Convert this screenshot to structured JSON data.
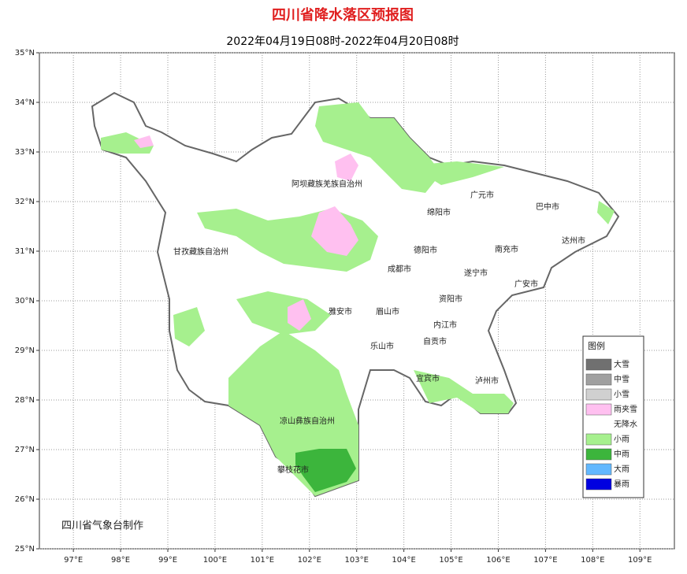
{
  "header": {
    "title": "四川省降水落区预报图",
    "subtitle": "2022年04月19日08时-2022年04月20日08时"
  },
  "map": {
    "lon_range": [
      96.28,
      109.73
    ],
    "lat_range": [
      25,
      35
    ],
    "lon_ticks": [
      {
        "value": 97,
        "label": "97°E"
      },
      {
        "value": 98,
        "label": "98°E"
      },
      {
        "value": 99,
        "label": "99°E"
      },
      {
        "value": 100,
        "label": "100°E"
      },
      {
        "value": 101,
        "label": "101°E"
      },
      {
        "value": 102,
        "label": "102°E"
      },
      {
        "value": 103,
        "label": "103°E"
      },
      {
        "value": 104,
        "label": "104°E"
      },
      {
        "value": 105,
        "label": "105°E"
      },
      {
        "value": 106,
        "label": "106°E"
      },
      {
        "value": 107,
        "label": "107°E"
      },
      {
        "value": 108,
        "label": "108°E"
      },
      {
        "value": 109,
        "label": "109°E"
      }
    ],
    "lat_ticks": [
      {
        "value": 25,
        "label": "25°N"
      },
      {
        "value": 26,
        "label": "26°N"
      },
      {
        "value": 27,
        "label": "27°N"
      },
      {
        "value": 28,
        "label": "28°N"
      },
      {
        "value": 29,
        "label": "29°N"
      },
      {
        "value": 30,
        "label": "30°N"
      },
      {
        "value": 31,
        "label": "31°N"
      },
      {
        "value": 32,
        "label": "32°N"
      },
      {
        "value": 33,
        "label": "33°N"
      },
      {
        "value": 34,
        "label": "34°N"
      },
      {
        "value": 35,
        "label": "35°N"
      }
    ],
    "grid": true,
    "places": [
      "阿坝藏族羌族自治州",
      "甘孜藏族自治州",
      "广元市",
      "巴中市",
      "绵阳市",
      "达州市",
      "德阳市",
      "南充市",
      "成都市",
      "遂宁市",
      "广安市",
      "资阳市",
      "雅安市",
      "眉山市",
      "内江市",
      "乐山市",
      "自贡市",
      "宜宾市",
      "泸州市",
      "凉山彝族自治州",
      "攀枝花市"
    ]
  },
  "legend": {
    "title": "图例",
    "items": [
      {
        "label": "大雪",
        "color": "#707070"
      },
      {
        "label": "中雪",
        "color": "#a0a0a0"
      },
      {
        "label": "小雪",
        "color": "#d0d0d0"
      },
      {
        "label": "雨夹雪",
        "color": "#ffc0f0"
      },
      {
        "label": "无降水",
        "color": "#ffffff"
      },
      {
        "label": "小雨",
        "color": "#a6f08e"
      },
      {
        "label": "中雨",
        "color": "#3cb53c"
      },
      {
        "label": "大雨",
        "color": "#62b8ff"
      },
      {
        "label": "暴雨",
        "color": "#0000e0"
      }
    ]
  },
  "footer": {
    "credit": "四川省气象台制作"
  }
}
